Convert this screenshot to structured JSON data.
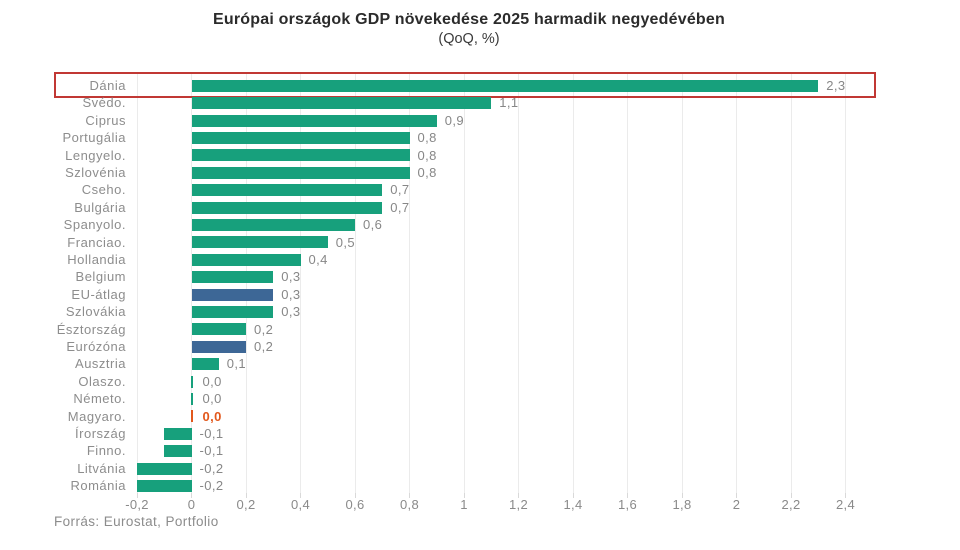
{
  "title": "Európai országok GDP növekedése 2025 harmadik negyedévében",
  "subtitle": "(QoQ, %)",
  "source": "Forrás: Eurostat, Portfolio",
  "colors": {
    "bar_green": "#17a07c",
    "bar_blue": "#3d6796",
    "bar_orange": "#e2581c",
    "value_gray": "#878787",
    "value_orange": "#e2581c",
    "highlight_red": "#c13834",
    "label_gray": "#8d8d8d",
    "grid_gray": "#ebebeb",
    "title_dark": "#2b2b2b"
  },
  "chart_data": {
    "type": "bar",
    "orientation": "horizontal",
    "title": "Európai országok GDP növekedése 2025 harmadik negyedévében (QoQ, %)",
    "xlabel": "",
    "ylabel": "",
    "xlim": [
      -0.4,
      2.6
    ],
    "grid": "vertical",
    "legend": null,
    "tick_values": [
      -0.2,
      0,
      0.2,
      0.4,
      0.6,
      0.8,
      1,
      1.2,
      1.4,
      1.6,
      1.8,
      2,
      2.2,
      2.4
    ],
    "tick_labels": [
      "-0,2",
      "0",
      "0,2",
      "0,4",
      "0,6",
      "0,8",
      "1",
      "1,2",
      "1,4",
      "1,6",
      "1,8",
      "2",
      "2,2",
      "2,4"
    ],
    "rows": [
      {
        "country": "Dánia",
        "value": 2.3,
        "label": "2,3",
        "color": "green",
        "value_color": "gray",
        "highlighted": true
      },
      {
        "country": "Svédo.",
        "value": 1.1,
        "label": "1,1",
        "color": "green",
        "value_color": "gray",
        "highlighted": false
      },
      {
        "country": "Ciprus",
        "value": 0.9,
        "label": "0,9",
        "color": "green",
        "value_color": "gray",
        "highlighted": false
      },
      {
        "country": "Portugália",
        "value": 0.8,
        "label": "0,8",
        "color": "green",
        "value_color": "gray",
        "highlighted": false
      },
      {
        "country": "Lengyelo.",
        "value": 0.8,
        "label": "0,8",
        "color": "green",
        "value_color": "gray",
        "highlighted": false
      },
      {
        "country": "Szlovénia",
        "value": 0.8,
        "label": "0,8",
        "color": "green",
        "value_color": "gray",
        "highlighted": false
      },
      {
        "country": "Cseho.",
        "value": 0.7,
        "label": "0,7",
        "color": "green",
        "value_color": "gray",
        "highlighted": false
      },
      {
        "country": "Bulgária",
        "value": 0.7,
        "label": "0,7",
        "color": "green",
        "value_color": "gray",
        "highlighted": false
      },
      {
        "country": "Spanyolo.",
        "value": 0.6,
        "label": "0,6",
        "color": "green",
        "value_color": "gray",
        "highlighted": false
      },
      {
        "country": "Franciao.",
        "value": 0.5,
        "label": "0,5",
        "color": "green",
        "value_color": "gray",
        "highlighted": false
      },
      {
        "country": "Hollandia",
        "value": 0.4,
        "label": "0,4",
        "color": "green",
        "value_color": "gray",
        "highlighted": false
      },
      {
        "country": "Belgium",
        "value": 0.3,
        "label": "0,3",
        "color": "green",
        "value_color": "gray",
        "highlighted": false
      },
      {
        "country": "EU-átlag",
        "value": 0.3,
        "label": "0,3",
        "color": "blue",
        "value_color": "gray",
        "highlighted": false
      },
      {
        "country": "Szlovákia",
        "value": 0.3,
        "label": "0,3",
        "color": "green",
        "value_color": "gray",
        "highlighted": false
      },
      {
        "country": "Észtország",
        "value": 0.2,
        "label": "0,2",
        "color": "green",
        "value_color": "gray",
        "highlighted": false
      },
      {
        "country": "Eurózóna",
        "value": 0.2,
        "label": "0,2",
        "color": "blue",
        "value_color": "gray",
        "highlighted": false
      },
      {
        "country": "Ausztria",
        "value": 0.1,
        "label": "0,1",
        "color": "green",
        "value_color": "gray",
        "highlighted": false
      },
      {
        "country": "Olaszo.",
        "value": 0.0,
        "label": "0,0",
        "color": "green",
        "value_color": "gray",
        "highlighted": false
      },
      {
        "country": "Németo.",
        "value": 0.0,
        "label": "0,0",
        "color": "green",
        "value_color": "gray",
        "highlighted": false
      },
      {
        "country": "Magyaro.",
        "value": 0.0,
        "label": "0,0",
        "color": "orange",
        "value_color": "orange",
        "highlighted": false
      },
      {
        "country": "Írország",
        "value": -0.1,
        "label": "-0,1",
        "color": "green",
        "value_color": "gray",
        "highlighted": false
      },
      {
        "country": "Finno.",
        "value": -0.1,
        "label": "-0,1",
        "color": "green",
        "value_color": "gray",
        "highlighted": false
      },
      {
        "country": "Litvánia",
        "value": -0.2,
        "label": "-0,2",
        "color": "green",
        "value_color": "gray",
        "highlighted": false
      },
      {
        "country": "Románia",
        "value": -0.2,
        "label": "-0,2",
        "color": "green",
        "value_color": "gray",
        "highlighted": false
      }
    ]
  }
}
